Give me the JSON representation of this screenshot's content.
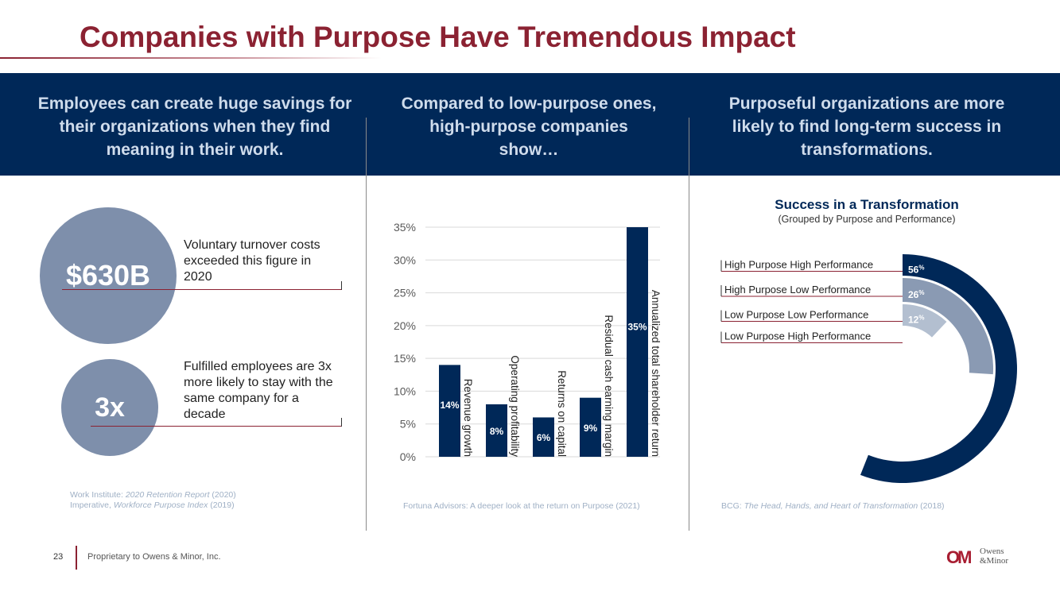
{
  "slide": {
    "title": "Companies with Purpose Have Tremendous Impact",
    "page_number": "23",
    "footer": "Proprietary to Owens & Minor, Inc."
  },
  "columns": [
    {
      "heading": "Employees can create huge savings for their organizations when they find meaning in their work."
    },
    {
      "heading": "Compared to low-purpose ones, high-purpose companies show…"
    },
    {
      "heading": "Purposeful organizations are more likely to find long-term success in transformations."
    }
  ],
  "left": {
    "stat1_value": "$630B",
    "stat1_text": "Voluntary turnover costs exceeded this figure in 2020",
    "stat2_value": "3x",
    "stat2_text": "Fulfilled employees are 3x more likely to stay with the same company for a decade",
    "source_line1_prefix": "Work Institute: ",
    "source_line1_title": "2020 Retention Report",
    "source_line1_suffix": " (2020)",
    "source_line2_prefix": "Imperative, ",
    "source_line2_title": "Workforce Purpose Index",
    "source_line2_suffix": " (2019)"
  },
  "middle": {
    "source": "Fortuna Advisors: A deeper look at the return on Purpose (2021)"
  },
  "right": {
    "source_prefix": "BCG: ",
    "source_title": "The Head, Hands, and Heart of Transformation",
    "source_suffix": " (2018)"
  },
  "chart_data": [
    {
      "type": "bar",
      "categories": [
        "Revenue growth",
        "Operating profitability",
        "Returns on capital",
        "Residual cash earning margin",
        "Annualized total shareholder return"
      ],
      "values": [
        14,
        8,
        6,
        9,
        35
      ],
      "data_labels": [
        "14%",
        "8%",
        "6%",
        "9%",
        "35%"
      ],
      "ylim": [
        0,
        35
      ],
      "yticks": [
        0,
        5,
        10,
        15,
        20,
        25,
        30,
        35
      ],
      "ytick_labels": [
        "0%",
        "5%",
        "10%",
        "15%",
        "20%",
        "25%",
        "30%",
        "35%"
      ],
      "grid": true,
      "bar_color": "#002858"
    },
    {
      "type": "radial-bar",
      "title": "Success in a Transformation",
      "subtitle": "(Grouped by Purpose and Performance)",
      "categories": [
        "High Purpose High Performance",
        "High Purpose Low Performance",
        "Low Purpose Low Performance",
        "Low Purpose High Performance"
      ],
      "values": [
        56,
        26,
        12,
        0
      ],
      "data_labels": [
        "56",
        "26",
        "12",
        ""
      ],
      "percent_sign": "%",
      "colors": [
        "#002858",
        "#8a9ab3",
        "#b3bfd0",
        "#d8dee8"
      ]
    }
  ],
  "brand": {
    "logo_mark": "OM",
    "logo_word1": "Owens",
    "logo_word2": "&Minor",
    "accent": "#8b2232",
    "navy": "#002858"
  }
}
